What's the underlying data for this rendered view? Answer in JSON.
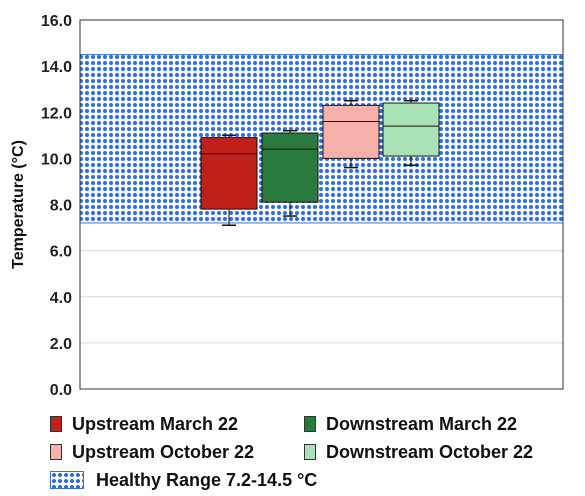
{
  "chart_data": {
    "type": "box",
    "ylabel": "Temperature (°C)",
    "ylim": [
      0,
      16
    ],
    "yticks": [
      "0.0",
      "2.0",
      "4.0",
      "6.0",
      "8.0",
      "10.0",
      "12.0",
      "14.0",
      "16.0"
    ],
    "grid": true,
    "healthy_range": {
      "label": "Healthy Range 7.2-14.5 °C",
      "min": 7.2,
      "max": 14.5,
      "color": "#2f6de0"
    },
    "series": [
      {
        "name": "Upstream March 22",
        "color": "#c0201a",
        "min": 7.1,
        "q1": 7.8,
        "median": 10.2,
        "q3": 10.9,
        "max": 11.0
      },
      {
        "name": "Downstream March 22",
        "color": "#2a7a3e",
        "min": 7.5,
        "q1": 8.1,
        "median": 10.4,
        "q3": 11.1,
        "max": 11.2
      },
      {
        "name": "Upstream October 22",
        "color": "#f7b1aa",
        "min": 9.6,
        "q1": 10.0,
        "median": 11.6,
        "q3": 12.3,
        "max": 12.5
      },
      {
        "name": "Downstream October 22",
        "color": "#a9e2b6",
        "min": 9.7,
        "q1": 10.1,
        "median": 11.4,
        "q3": 12.4,
        "max": 12.5
      }
    ]
  }
}
